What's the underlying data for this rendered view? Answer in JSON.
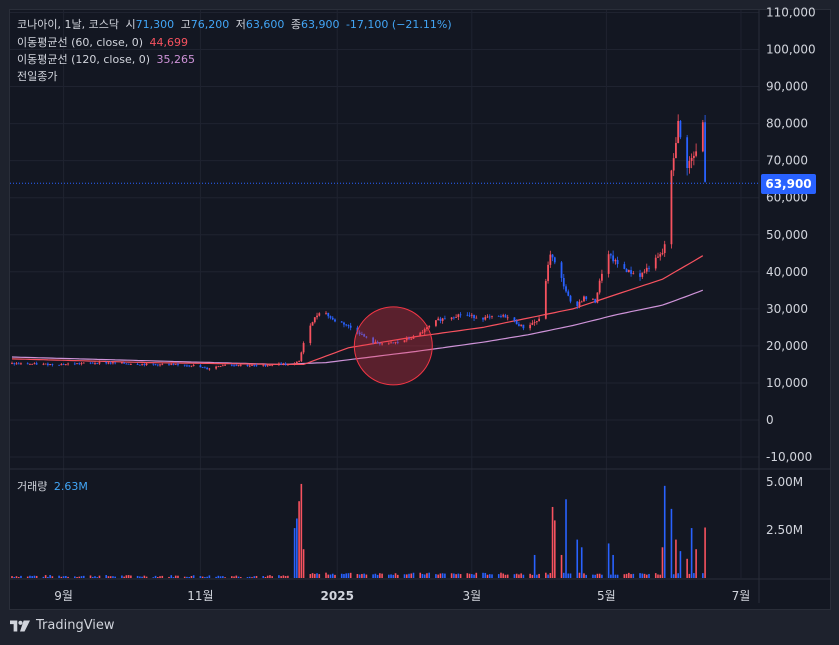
{
  "legend": {
    "symbol": "코나아이, 1날, 코스닥",
    "o_label": "시",
    "o": "71,300",
    "h_label": "고",
    "h": "76,200",
    "l_label": "저",
    "l": "63,600",
    "c_label": "종",
    "c": "63,900",
    "change": "-17,100 (−21.11%)",
    "ma60_label": "이동평균선 (60, close, 0)",
    "ma60_value": "44,699",
    "ma120_label": "이동평균선 (120, close, 0)",
    "ma120_value": "35,265",
    "prev_close_label": "전일종가"
  },
  "volume_legend": {
    "label": "거래량",
    "value": "2.63M"
  },
  "price_tag": "63,900",
  "brand": "TradingView",
  "colors": {
    "up": "#f7525f",
    "down": "#2962ff",
    "ma60": "#f7525f",
    "ma120": "#ce93d8",
    "background": "#131722"
  },
  "chart_data": {
    "type": "candlestick",
    "y_ticks": [
      "110,000",
      "100,000",
      "90,000",
      "80,000",
      "70,000",
      "60,000",
      "50,000",
      "40,000",
      "30,000",
      "20,000",
      "10,000",
      "0",
      "-10,000"
    ],
    "y_tick_values": [
      110000,
      100000,
      90000,
      80000,
      70000,
      60000,
      50000,
      40000,
      30000,
      20000,
      10000,
      0,
      -10000
    ],
    "ylim": [
      -12000,
      112000
    ],
    "x_ticks": [
      "9월",
      "11월",
      "2025",
      "3월",
      "5월",
      "7월"
    ],
    "x_tick_days": [
      23,
      84,
      145,
      205,
      265,
      325
    ],
    "last_price": 63900,
    "annotation": {
      "type": "circle",
      "day": 170,
      "price": 20000
    },
    "close_keyframes": [
      [
        0,
        15200
      ],
      [
        20,
        15000
      ],
      [
        40,
        15500
      ],
      [
        60,
        15000
      ],
      [
        80,
        14800
      ],
      [
        87,
        13800
      ],
      [
        95,
        15000
      ],
      [
        110,
        14600
      ],
      [
        120,
        15200
      ],
      [
        125,
        14600
      ],
      [
        128,
        16000
      ],
      [
        132,
        25000
      ],
      [
        138,
        30000
      ],
      [
        143,
        27000
      ],
      [
        148,
        26000
      ],
      [
        155,
        23500
      ],
      [
        160,
        21000
      ],
      [
        167,
        20500
      ],
      [
        172,
        21000
      ],
      [
        180,
        22500
      ],
      [
        190,
        27000
      ],
      [
        200,
        28500
      ],
      [
        210,
        27500
      ],
      [
        220,
        28000
      ],
      [
        228,
        25000
      ],
      [
        235,
        27000
      ],
      [
        240,
        45000
      ],
      [
        245,
        38000
      ],
      [
        250,
        30000
      ],
      [
        255,
        33000
      ],
      [
        260,
        32000
      ],
      [
        265,
        45000
      ],
      [
        270,
        42000
      ],
      [
        275,
        40000
      ],
      [
        280,
        39000
      ],
      [
        285,
        42000
      ],
      [
        290,
        45000
      ],
      [
        292,
        50000
      ],
      [
        293,
        62000
      ],
      [
        297,
        80000
      ],
      [
        300,
        68000
      ],
      [
        305,
        72000
      ],
      [
        308,
        80000
      ],
      [
        309,
        63900
      ]
    ],
    "ma60": [
      [
        0,
        16500
      ],
      [
        60,
        15500
      ],
      [
        120,
        15000
      ],
      [
        130,
        15000
      ],
      [
        150,
        19500
      ],
      [
        180,
        22500
      ],
      [
        210,
        25000
      ],
      [
        230,
        27500
      ],
      [
        250,
        30000
      ],
      [
        270,
        34000
      ],
      [
        290,
        38000
      ],
      [
        300,
        41500
      ],
      [
        309,
        44699
      ]
    ],
    "ma120": [
      [
        0,
        17000
      ],
      [
        120,
        15000
      ],
      [
        140,
        15500
      ],
      [
        180,
        18500
      ],
      [
        210,
        21000
      ],
      [
        230,
        23000
      ],
      [
        250,
        25500
      ],
      [
        270,
        28500
      ],
      [
        290,
        31000
      ],
      [
        300,
        33200
      ],
      [
        309,
        35265
      ]
    ],
    "volume_ticks": [
      "5.00M",
      "2.50M"
    ],
    "volume_tick_values": [
      5000000,
      2500000
    ],
    "volume_spikes": [
      [
        41,
        700000
      ],
      [
        125,
        300000
      ],
      [
        126,
        2600000
      ],
      [
        127,
        3100000
      ],
      [
        128,
        4000000
      ],
      [
        129,
        4900000
      ],
      [
        130,
        1500000
      ],
      [
        131,
        1000000
      ],
      [
        132,
        800000
      ],
      [
        233,
        1200000
      ],
      [
        237,
        2000000
      ],
      [
        241,
        3700000
      ],
      [
        242,
        3000000
      ],
      [
        243,
        2000000
      ],
      [
        245,
        1200000
      ],
      [
        247,
        4100000
      ],
      [
        250,
        4500000
      ],
      [
        252,
        2000000
      ],
      [
        254,
        1600000
      ],
      [
        265,
        3500000
      ],
      [
        266,
        1800000
      ],
      [
        268,
        1200000
      ],
      [
        290,
        1600000
      ],
      [
        291,
        4800000
      ],
      [
        292,
        5900000
      ],
      [
        293,
        3200000
      ],
      [
        294,
        3600000
      ],
      [
        296,
        2000000
      ],
      [
        298,
        1400000
      ],
      [
        299,
        2600000
      ],
      [
        301,
        1000000
      ],
      [
        303,
        2600000
      ],
      [
        305,
        1500000
      ],
      [
        307,
        1200000
      ],
      [
        309,
        2630000
      ]
    ]
  }
}
